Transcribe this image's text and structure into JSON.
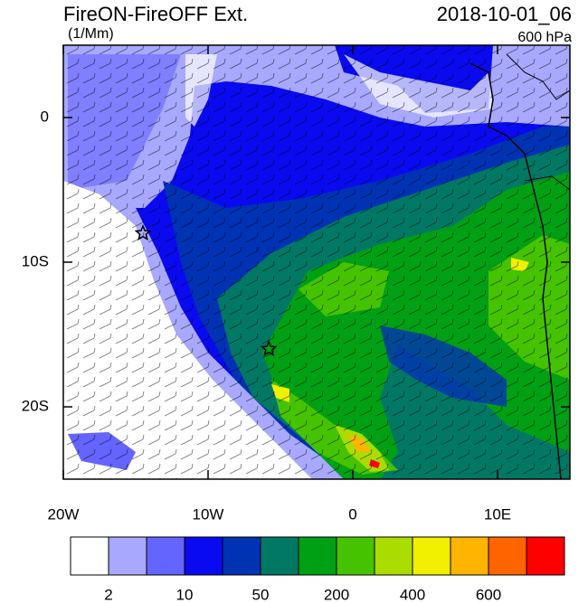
{
  "chart_data": {
    "type": "map",
    "title": "FireON-FireOFF Ext.",
    "units": "(1/Mm)",
    "date": "2018-10-01_06",
    "level": "600 hPa",
    "xlim": [
      -20,
      15
    ],
    "ylim": [
      -25,
      5
    ],
    "xticks": [
      {
        "value": -20,
        "label": "20W"
      },
      {
        "value": -10,
        "label": "10W"
      },
      {
        "value": 0,
        "label": "0"
      },
      {
        "value": 10,
        "label": "10E"
      }
    ],
    "yticks": [
      {
        "value": 0,
        "label": "0"
      },
      {
        "value": -10,
        "label": "10S"
      },
      {
        "value": -20,
        "label": "20S"
      }
    ],
    "markers": [
      {
        "x": -14.5,
        "y": -8
      },
      {
        "x": -5.8,
        "y": -16
      }
    ],
    "colorbar": {
      "colors": [
        "#ffffff",
        "#a8a8ff",
        "#6464ff",
        "#0a0af0",
        "#0032b4",
        "#007864",
        "#00a014",
        "#46c300",
        "#aadc00",
        "#f0f000",
        "#ffb400",
        "#ff6400",
        "#ff0000"
      ],
      "labels": [
        "2",
        "10",
        "50",
        "200",
        "400",
        "600"
      ]
    }
  }
}
